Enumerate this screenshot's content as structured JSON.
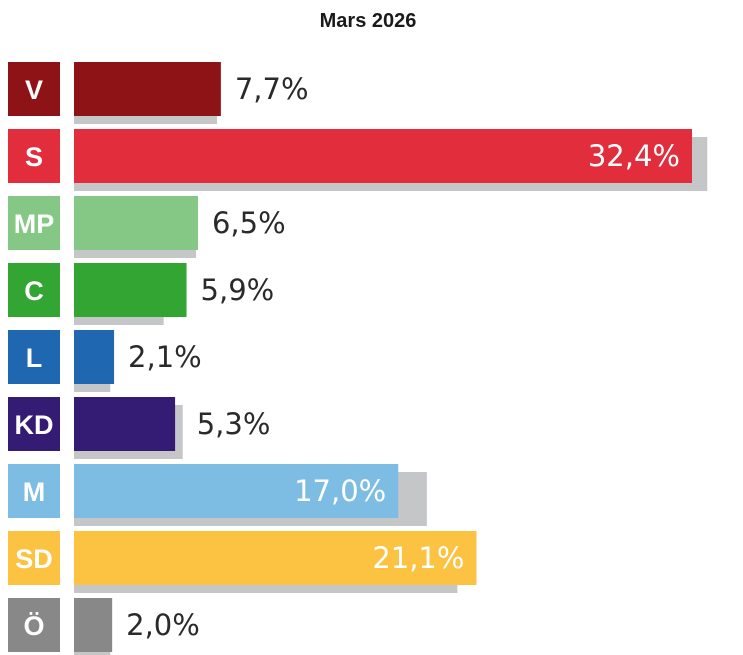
{
  "chart_data": {
    "type": "bar",
    "orientation": "horizontal",
    "title": "Mars 2026",
    "categories": [
      "V",
      "S",
      "MP",
      "C",
      "L",
      "KD",
      "M",
      "SD",
      "Ö"
    ],
    "values": [
      7.7,
      32.4,
      6.5,
      5.9,
      2.1,
      5.3,
      17.0,
      21.1,
      2.0
    ],
    "value_labels": [
      "7,7%",
      "32,4%",
      "6,5%",
      "5,9%",
      "2,1%",
      "5,3%",
      "17,0%",
      "21,1%",
      "2,0%"
    ],
    "previous_values": [
      7.5,
      33.2,
      6.4,
      4.7,
      1.9,
      5.7,
      18.5,
      20.1,
      1.9
    ],
    "colors": [
      "#8e1317",
      "#e12d3c",
      "#85c785",
      "#33a532",
      "#1f67b0",
      "#341c74",
      "#7dbde3",
      "#fcc242",
      "#888888"
    ],
    "comparison_color": "#c5c6c8",
    "xlim": [
      0,
      33
    ]
  }
}
